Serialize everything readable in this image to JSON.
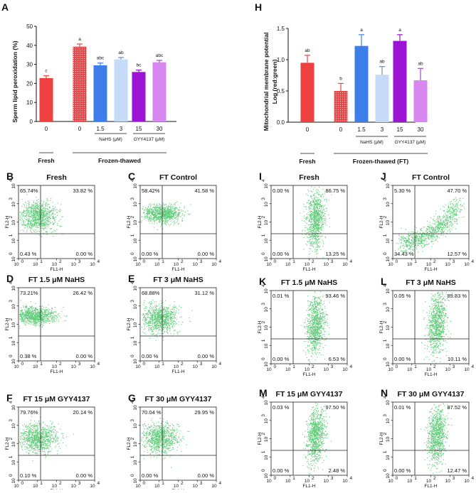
{
  "colors": {
    "red": "#EF4040",
    "hatch_red": "#E54848",
    "blue": "#3D7EEA",
    "light_blue": "#C6DBF7",
    "purple": "#9D15D4",
    "violet": "#D886F0",
    "dots": "#5CCB76"
  },
  "panels": {
    "A": "A",
    "H": "H"
  },
  "chart_data": [
    {
      "id": "A",
      "type": "bar",
      "ylabel": "Sperm lipid peroxidation (%)",
      "ylim": [
        0,
        50
      ],
      "yticks": [
        0,
        10,
        20,
        30,
        40,
        50
      ],
      "categories": [
        "0",
        "0",
        "1.5",
        "3",
        "15",
        "30"
      ],
      "values": [
        22.8,
        39.3,
        29.5,
        32.6,
        26.0,
        31.1
      ],
      "errors": [
        1.2,
        1.4,
        1.2,
        1.0,
        1.0,
        1.0
      ],
      "letters": [
        "c",
        "a",
        "abc",
        "ab",
        "bc",
        "abc"
      ],
      "fills": [
        "red",
        "hatch_red",
        "blue",
        "light_blue",
        "purple",
        "violet"
      ],
      "groups": {
        "fresh": "Fresh",
        "frozen": "Frozen-thawed",
        "nahs": "NaHS (μM)",
        "gyy": "GYY4137 (μM)"
      }
    },
    {
      "id": "H",
      "type": "bar",
      "ylabel_line1": "Mitochondrial membrane potential",
      "ylabel_line2": "Log (red:green)",
      "ylim": [
        0,
        1.5
      ],
      "yticks": [
        "0.0",
        "0.5",
        "1.0",
        "1.5"
      ],
      "categories": [
        "0",
        "0",
        "1.5",
        "3",
        "15",
        "30"
      ],
      "values": [
        0.95,
        0.5,
        1.22,
        0.76,
        1.3,
        0.67
      ],
      "errors": [
        0.12,
        0.12,
        0.18,
        0.13,
        0.1,
        0.19
      ],
      "letters": [
        "ab",
        "b",
        "a",
        "ab",
        "a",
        "ab"
      ],
      "fills": [
        "red",
        "hatch_red",
        "blue",
        "light_blue",
        "purple",
        "violet"
      ],
      "groups": {
        "fresh": "Fresh",
        "frozen": "Frozen-thawed (FT)",
        "nahs": "NaHS (μM)",
        "gyy": "GYY4137 (μM)"
      }
    }
  ],
  "scatter_plots": [
    {
      "letter": "B",
      "title": "Fresh",
      "q_ul": "65.74%",
      "q_ur": "33.82 %",
      "q_ll": "0.43 %",
      "q_lr": "0.00 %",
      "shape": "cloud_left"
    },
    {
      "letter": "C",
      "title": "FT Control",
      "q_ul": "58.42%",
      "q_ur": "41.58 %",
      "q_ll": "0.00 %",
      "q_lr": "0.00 %",
      "shape": "band"
    },
    {
      "letter": "D",
      "title": "FT 1.5 μM NaHS",
      "q_ul": "73.21%",
      "q_ur": "26.42 %",
      "q_ll": "0.38 %",
      "q_lr": "0.00 %",
      "shape": "band_left"
    },
    {
      "letter": "E",
      "title": "FT 3 μM NaHS",
      "q_ul": "68.88%",
      "q_ur": "31.12 %",
      "q_ll": "0.00 %",
      "q_lr": "0.00 %",
      "shape": "cloud_left"
    },
    {
      "letter": "F",
      "title": "FT 15 μM GYY4137",
      "q_ul": "79.76%",
      "q_ur": "20.14 %",
      "q_ll": "0.10 %",
      "q_lr": "0.00 %",
      "shape": "cloud_left"
    },
    {
      "letter": "G",
      "title": "FT 30 μM GYY4137",
      "q_ul": "70.04 %",
      "q_ur": "29.95 %",
      "q_ll": "0.00 %",
      "q_lr": "0.00 %",
      "shape": "cloud_left"
    },
    {
      "letter": "I",
      "title": "Fresh",
      "q_ul": "0.00 %",
      "q_ur": "86.75 %",
      "q_ll": "0.00 %",
      "q_lr": "13.25 %",
      "shape": "vertical"
    },
    {
      "letter": "J",
      "title": "FT Control",
      "q_ul": "5.30 %",
      "q_ur": "47.70 %",
      "q_ll": "34.43 %",
      "q_lr": "12.57 %",
      "shape": "diagonal"
    },
    {
      "letter": "K",
      "title": "FT 1.5 μM NaHS",
      "q_ul": "0.01 %",
      "q_ur": "93.46 %",
      "q_ll": "0.00 %",
      "q_lr": "6.53 %",
      "shape": "vertical"
    },
    {
      "letter": "L",
      "title": "FT 3 μM NaHS",
      "q_ul": "0.05 %",
      "q_ur": "89.83 %",
      "q_ll": "0.00 %",
      "q_lr": "10.11 %",
      "shape": "vertical"
    },
    {
      "letter": "M",
      "title": "FT 15 μM GYY4137",
      "q_ul": "0.03 %",
      "q_ur": "97.50 %",
      "q_ll": "0.00 %",
      "q_lr": "2.48 %",
      "shape": "vertical"
    },
    {
      "letter": "N",
      "title": "FT 30 μM GYY4137",
      "q_ul": "0.01 %",
      "q_ur": "87.52 %",
      "q_ll": "0.00 %",
      "q_lr": "12.47 %",
      "shape": "vertical"
    }
  ],
  "axes": {
    "x_label": "FL1-H",
    "y_label": "FL2-H",
    "tick_labels": [
      "10",
      "10",
      "10",
      "10",
      "10"
    ],
    "tick_exps": [
      "0",
      "1",
      "2",
      "3",
      "4"
    ]
  }
}
